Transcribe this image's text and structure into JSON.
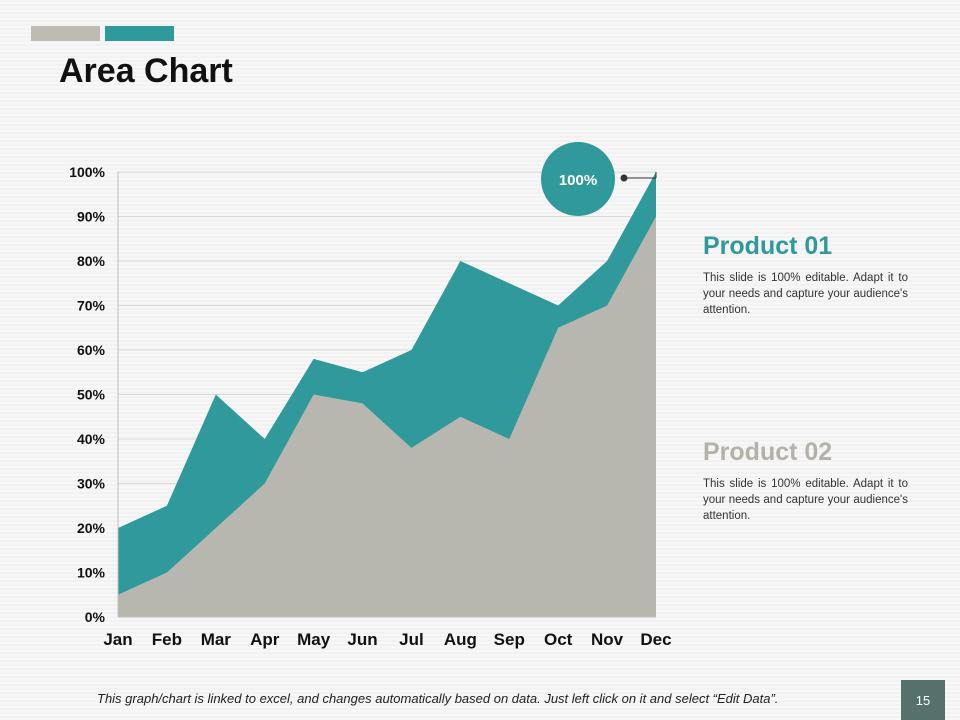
{
  "slide": {
    "title": "Area Chart",
    "page_number": "15",
    "footer_note": "This graph/chart is linked to excel, and changes automatically based on data.  Just left click on it and select “Edit Data”.",
    "callout_label": "100%"
  },
  "legend": {
    "product1": {
      "title": "Product 01",
      "description": "This slide is 100% editable. Adapt it to your needs and capture your audience's attention."
    },
    "product2": {
      "title": "Product 02",
      "description": "This slide is 100% editable. Adapt it to your needs and capture your audience's attention."
    }
  },
  "colors": {
    "teal": "#2f999b",
    "grey": "#b8b7af",
    "accent_grey": "#bdbbb4",
    "page_badge": "#56716c"
  },
  "chart_data": {
    "type": "area",
    "title": "",
    "xlabel": "",
    "ylabel": "",
    "categories": [
      "Jan",
      "Feb",
      "Mar",
      "Apr",
      "May",
      "Jun",
      "Jul",
      "Aug",
      "Sep",
      "Oct",
      "Nov",
      "Dec"
    ],
    "y_ticks": [
      "0%",
      "10%",
      "20%",
      "30%",
      "40%",
      "50%",
      "60%",
      "70%",
      "80%",
      "90%",
      "100%"
    ],
    "ylim": [
      0,
      100
    ],
    "grid": true,
    "series": [
      {
        "name": "Product 01",
        "color": "#2f999b",
        "values": [
          20,
          25,
          50,
          40,
          58,
          55,
          60,
          80,
          75,
          70,
          80,
          100
        ]
      },
      {
        "name": "Product 02",
        "color": "#b8b7af",
        "values": [
          5,
          10,
          20,
          30,
          50,
          48,
          38,
          45,
          40,
          65,
          70,
          90
        ]
      }
    ]
  }
}
